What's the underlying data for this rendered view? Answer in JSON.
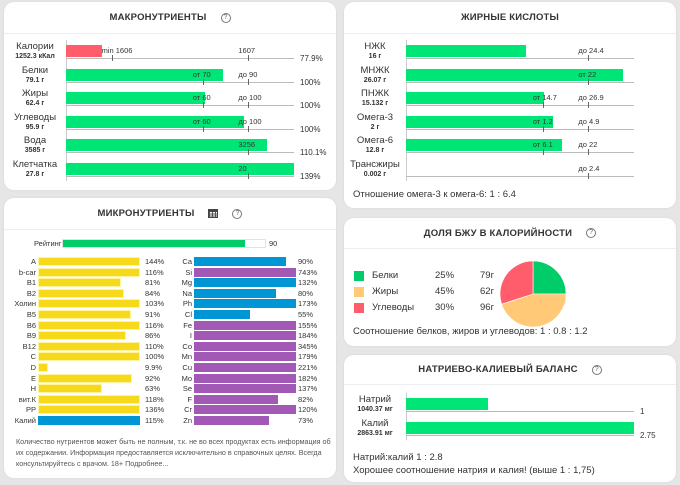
{
  "macro": {
    "title": "МАКРОНУТРИЕНТЫ",
    "help_icon": "?",
    "rows": [
      {
        "name": "Калории",
        "amount": "1252.3 кКал",
        "fill": 0.157,
        "color": "#ff5d6c",
        "ticks": [
          {
            "label": "min 1606",
            "pos": 0.2
          },
          {
            "label": "1607",
            "pos": 0.8
          }
        ],
        "percent": "77.9%"
      },
      {
        "name": "Белки",
        "amount": "79.1 г",
        "fill": 0.69,
        "color": "#00e676",
        "ticks": [
          {
            "label": "от 70",
            "pos": 0.6
          },
          {
            "label": "до 90",
            "pos": 0.8
          }
        ],
        "percent": "100%"
      },
      {
        "name": "Жиры",
        "amount": "62.4 г",
        "fill": 0.61,
        "color": "#00e676",
        "ticks": [
          {
            "label": "от 60",
            "pos": 0.6
          },
          {
            "label": "до 100",
            "pos": 0.8
          }
        ],
        "percent": "100%"
      },
      {
        "name": "Углеводы",
        "amount": "95.9 г",
        "fill": 0.78,
        "color": "#00e676",
        "ticks": [
          {
            "label": "от 60",
            "pos": 0.6
          },
          {
            "label": "до 100",
            "pos": 0.8
          }
        ],
        "percent": "100%"
      },
      {
        "name": "Вода",
        "amount": "3585 г",
        "fill": 0.88,
        "color": "#00e676",
        "ticks": [
          {
            "label": "3256",
            "pos": 0.8
          }
        ],
        "percent": "110.1%"
      },
      {
        "name": "Клетчатка",
        "amount": "27.8 г",
        "fill": 1.0,
        "color": "#00e676",
        "ticks": [
          {
            "label": "20",
            "pos": 0.8
          }
        ],
        "percent": "139%"
      }
    ]
  },
  "micro": {
    "title": "МИКРОНУТРИЕНТЫ",
    "table_icon": "table",
    "help_icon": "?",
    "rating_label": "Рейтинг",
    "rating_value": "90",
    "rating_fill": 0.9,
    "left": [
      {
        "name": "A",
        "percent": "144%",
        "fill": 1.0,
        "color": "yellow"
      },
      {
        "name": "b-car",
        "percent": "116%",
        "fill": 1.0,
        "color": "yellow"
      },
      {
        "name": "B1",
        "percent": "81%",
        "fill": 0.81,
        "color": "yellow"
      },
      {
        "name": "B2",
        "percent": "84%",
        "fill": 0.84,
        "color": "yellow"
      },
      {
        "name": "Холин",
        "percent": "103%",
        "fill": 1.0,
        "color": "yellow"
      },
      {
        "name": "B5",
        "percent": "91%",
        "fill": 0.91,
        "color": "yellow"
      },
      {
        "name": "B6",
        "percent": "116%",
        "fill": 1.0,
        "color": "yellow"
      },
      {
        "name": "B9",
        "percent": "86%",
        "fill": 0.86,
        "color": "yellow"
      },
      {
        "name": "B12",
        "percent": "110%",
        "fill": 1.0,
        "color": "yellow"
      },
      {
        "name": "C",
        "percent": "100%",
        "fill": 1.0,
        "color": "yellow"
      },
      {
        "name": "D",
        "percent": "9.9%",
        "fill": 0.099,
        "color": "yellow"
      },
      {
        "name": "E",
        "percent": "92%",
        "fill": 0.92,
        "color": "yellow"
      },
      {
        "name": "H",
        "percent": "63%",
        "fill": 0.63,
        "color": "yellow"
      },
      {
        "name": "вит.К",
        "percent": "118%",
        "fill": 1.0,
        "color": "yellow"
      },
      {
        "name": "PP",
        "percent": "136%",
        "fill": 1.0,
        "color": "yellow"
      },
      {
        "name": "Калий",
        "percent": "115%",
        "fill": 1.0,
        "color": "blue"
      }
    ],
    "right": [
      {
        "name": "Ca",
        "percent": "90%",
        "fill": 0.9,
        "color": "blue"
      },
      {
        "name": "Si",
        "percent": "743%",
        "fill": 1.0,
        "color": "purple"
      },
      {
        "name": "Mg",
        "percent": "132%",
        "fill": 1.0,
        "color": "blue"
      },
      {
        "name": "Na",
        "percent": "80%",
        "fill": 0.8,
        "color": "blue"
      },
      {
        "name": "Ph",
        "percent": "173%",
        "fill": 1.0,
        "color": "blue"
      },
      {
        "name": "Cl",
        "percent": "55%",
        "fill": 0.55,
        "color": "blue"
      },
      {
        "name": "Fe",
        "percent": "155%",
        "fill": 1.0,
        "color": "purple"
      },
      {
        "name": "I",
        "percent": "184%",
        "fill": 1.0,
        "color": "purple"
      },
      {
        "name": "Co",
        "percent": "345%",
        "fill": 1.0,
        "color": "purple"
      },
      {
        "name": "Mn",
        "percent": "179%",
        "fill": 1.0,
        "color": "purple"
      },
      {
        "name": "Cu",
        "percent": "221%",
        "fill": 1.0,
        "color": "purple"
      },
      {
        "name": "Mo",
        "percent": "182%",
        "fill": 1.0,
        "color": "purple"
      },
      {
        "name": "Se",
        "percent": "137%",
        "fill": 1.0,
        "color": "purple"
      },
      {
        "name": "F",
        "percent": "82%",
        "fill": 0.82,
        "color": "purple"
      },
      {
        "name": "Cr",
        "percent": "120%",
        "fill": 1.0,
        "color": "purple"
      },
      {
        "name": "Zn",
        "percent": "73%",
        "fill": 0.73,
        "color": "purple"
      }
    ],
    "footnote": "Количество нутриентов может быть не полным, т.к. не во всех продуктах есть информация об их содержании. Информация предоставляется исключительно в справочных целях. Всегда консультируйтесь с врачом. 18+ Подробнее..."
  },
  "fatty": {
    "title": "ЖИРНЫЕ КИСЛОТЫ",
    "rows": [
      {
        "name": "НЖК",
        "amount": "16 г",
        "fill": 0.525,
        "ticks": [
          {
            "label": "до 24.4",
            "pos": 0.8
          }
        ]
      },
      {
        "name": "МНЖК",
        "amount": "26.07 г",
        "fill": 0.95,
        "ticks": [
          {
            "label": "от 22",
            "pos": 0.8
          }
        ]
      },
      {
        "name": "ПНЖК",
        "amount": "15.132 г",
        "fill": 0.605,
        "ticks": [
          {
            "label": "от 14.7",
            "pos": 0.6
          },
          {
            "label": "до 26.9",
            "pos": 0.8
          }
        ]
      },
      {
        "name": "Омега-3",
        "amount": "2 г",
        "fill": 0.645,
        "ticks": [
          {
            "label": "от 1.2",
            "pos": 0.6
          },
          {
            "label": "до 4.9",
            "pos": 0.8
          }
        ]
      },
      {
        "name": "Омега-6",
        "amount": "12.8 г",
        "fill": 0.685,
        "ticks": [
          {
            "label": "от 6.1",
            "pos": 0.6
          },
          {
            "label": "до 22",
            "pos": 0.8
          }
        ]
      },
      {
        "name": "Трансжиры",
        "amount": "0.002 г",
        "fill": 0.0,
        "ticks": [
          {
            "label": "до 2.4",
            "pos": 0.8
          }
        ]
      }
    ],
    "ratio_text": "Отношение омега-3 к омега-6: 1 : 6.4"
  },
  "bju": {
    "title": "ДОЛЯ БЖУ В КАЛОРИЙНОСТИ",
    "help_icon": "?",
    "items": [
      {
        "name": "Белки",
        "percent": "25%",
        "grams": "79г",
        "color": "#00cc6a"
      },
      {
        "name": "Жиры",
        "percent": "45%",
        "grams": "62г",
        "color": "#ffc977"
      },
      {
        "name": "Углеводы",
        "percent": "30%",
        "grams": "96г",
        "color": "#ff5d6c"
      }
    ],
    "ratio_text": "Соотношение белков, жиров и углеводов: 1 : 0.8 : 1.2"
  },
  "chart_data": {
    "type": "pie",
    "title": "ДОЛЯ БЖУ В КАЛОРИЙНОСТИ",
    "categories": [
      "Белки",
      "Жиры",
      "Углеводы"
    ],
    "values": [
      25,
      45,
      30
    ],
    "colors": [
      "#00cc6a",
      "#ffc977",
      "#ff5d6c"
    ],
    "legend": "left"
  },
  "nak": {
    "title": "НАТРИЕВО-КАЛИЕВЫЙ БАЛАНС",
    "help_icon": "?",
    "rows": [
      {
        "name": "Натрий",
        "amount": "1040.37 мг",
        "fill": 0.36,
        "value": "1"
      },
      {
        "name": "Калий",
        "amount": "2863.91 мг",
        "fill": 1.0,
        "value": "2.75"
      }
    ],
    "ratio_text": "Натрий:калий 1 : 2.8",
    "verdict_text": "Хорошее соотношение натрия и калия! (выше 1 : 1,75)"
  }
}
